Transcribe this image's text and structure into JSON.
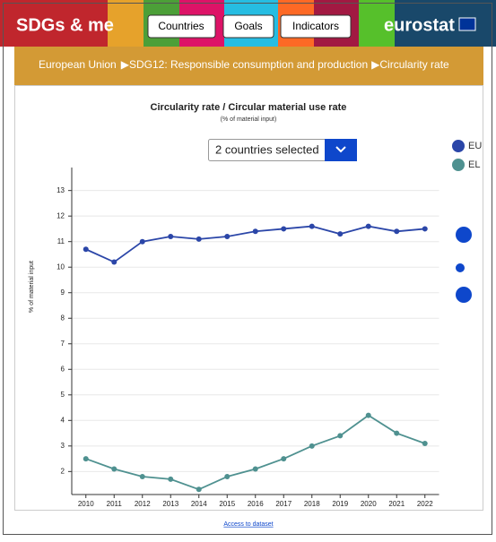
{
  "header": {
    "logo": "SDGs & me",
    "nav": [
      "Countries",
      "Goals",
      "Indicators"
    ],
    "brand": "eurostat"
  },
  "breadcrumb": [
    "European Union",
    "SDG12: Responsible consumption and production",
    "Circularity rate"
  ],
  "selector": "2 countries selected",
  "link": "Access to dataset",
  "chart_data": {
    "type": "line",
    "title": "Circularity rate / Circular material use rate",
    "subtitle": "(% of material input)",
    "y_label": "% of material input",
    "categories": [
      "2010",
      "2011",
      "2012",
      "2013",
      "2014",
      "2015",
      "2016",
      "2017",
      "2018",
      "2019",
      "2020",
      "2021",
      "2022"
    ],
    "series": [
      {
        "name": "EU",
        "color": "#2b46a8",
        "values": [
          10.7,
          10.2,
          11.0,
          11.2,
          11.1,
          11.2,
          11.4,
          11.5,
          11.6,
          11.3,
          11.6,
          11.4,
          11.5
        ]
      },
      {
        "name": "EL",
        "color": "#4f9190",
        "values": [
          2.5,
          2.1,
          1.8,
          1.7,
          1.3,
          1.8,
          2.1,
          2.5,
          3.0,
          3.4,
          4.2,
          3.5,
          3.1
        ]
      }
    ],
    "ylim": [
      1.1,
      13.9
    ],
    "yticks": [
      2,
      3,
      4,
      5,
      6,
      7,
      8,
      9,
      10,
      11,
      12,
      13
    ],
    "grid": true
  }
}
